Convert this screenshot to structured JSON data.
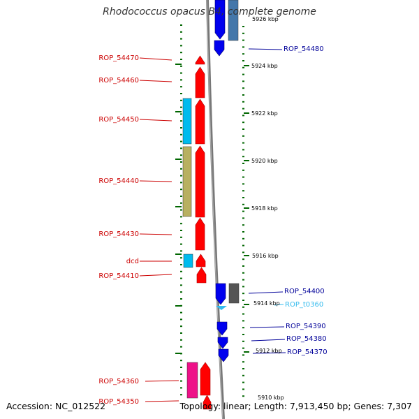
{
  "title": "Rhodococcus opacus B4, complete genome",
  "footer": {
    "accession": "Accession: NC_012522",
    "topology": "Topology: linear; Length: 7,913,450 bp; Genes: 7,307"
  },
  "colors": {
    "left_label": "#cc0000",
    "right_label": "#000099",
    "trna_label": "#33bbee",
    "red_gene": "#ff0000",
    "blue_gene": "#0000ee",
    "cyan_gene": "#00bbee",
    "olive_gene": "#b8b060",
    "pink_gene": "#ee1188",
    "steel_gene": "#4477aa",
    "grey_gene": "#555555",
    "tick_green": "#006600"
  },
  "kbp_ticks": [
    "5926 kbp",
    "5924 kbp",
    "5922 kbp",
    "5920 kbp",
    "5918 kbp",
    "5916 kbp",
    "5914 kbp",
    "5912 kbp",
    "5910 kbp"
  ],
  "left_labels": [
    {
      "text": "ROP_54470",
      "color": "left"
    },
    {
      "text": "ROP_54460",
      "color": "left"
    },
    {
      "text": "ROP_54450",
      "color": "left"
    },
    {
      "text": "ROP_54440",
      "color": "left"
    },
    {
      "text": "ROP_54430",
      "color": "left"
    },
    {
      "text": "dcd",
      "color": "left"
    },
    {
      "text": "ROP_54410",
      "color": "left"
    },
    {
      "text": "ROP_54360",
      "color": "left"
    },
    {
      "text": "ROP_54350",
      "color": "left"
    }
  ],
  "right_labels": [
    {
      "text": "ROP_54480",
      "color": "right"
    },
    {
      "text": "ROP_54400",
      "color": "right"
    },
    {
      "text": "ROP_t0360",
      "color": "trna"
    },
    {
      "text": "ROP_54390",
      "color": "right"
    },
    {
      "text": "ROP_54380",
      "color": "right"
    },
    {
      "text": "ROP_54370",
      "color": "right"
    }
  ]
}
